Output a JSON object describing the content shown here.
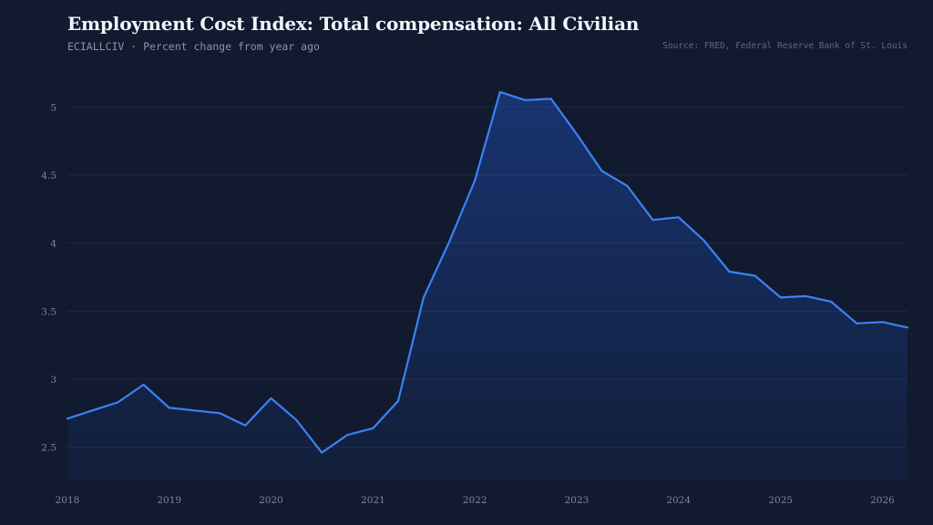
{
  "header": {
    "title": "Employment Cost Index: Total compensation: All Civilian",
    "subtitle": "ECIALLCIV · Percent change from year ago",
    "source": "Source: FRED, Federal Reserve Bank of St. Louis"
  },
  "colors": {
    "background": "#111a2e",
    "line": "#3b82f6",
    "grid": "#1f2a40"
  },
  "chart_data": {
    "type": "area",
    "x": [
      "2018-01-01",
      "2018-04-01",
      "2018-07-01",
      "2018-10-01",
      "2019-01-01",
      "2019-04-01",
      "2019-07-01",
      "2019-10-01",
      "2020-01-01",
      "2020-04-01",
      "2020-07-01",
      "2020-10-01",
      "2021-01-01",
      "2021-04-01",
      "2021-07-01",
      "2021-10-01",
      "2022-01-01",
      "2022-04-01",
      "2022-07-01",
      "2022-10-01",
      "2023-01-01",
      "2023-04-01",
      "2023-07-01",
      "2023-10-01",
      "2024-01-01",
      "2024-04-01",
      "2024-07-01",
      "2024-10-01",
      "2025-01-01",
      "2025-04-01",
      "2025-07-01",
      "2025-10-01",
      "2026-01-01",
      "2026-04-01"
    ],
    "series": [
      {
        "values": [
          2.71,
          2.77,
          2.83,
          2.96,
          2.79,
          2.77,
          2.75,
          2.66,
          2.86,
          2.7,
          2.46,
          2.59,
          2.64,
          2.84,
          3.6,
          4.01,
          4.46,
          5.11,
          5.05,
          5.06,
          4.8,
          4.53,
          4.42,
          4.17,
          4.19,
          4.02,
          3.79,
          3.76,
          3.6,
          3.61,
          3.57,
          3.41,
          3.42,
          3.38
        ]
      }
    ],
    "xticks": [
      "2018",
      "2019",
      "2020",
      "2021",
      "2022",
      "2023",
      "2024",
      "2025",
      "2026"
    ],
    "yticks": [
      "2.5",
      "3",
      "3.5",
      "4",
      "4.5",
      "5"
    ],
    "xlim": [
      "2018-01-01",
      "2026-04-01"
    ],
    "ylim": [
      2.25,
      5.25
    ],
    "grid": "horizontal",
    "legend": "none"
  }
}
